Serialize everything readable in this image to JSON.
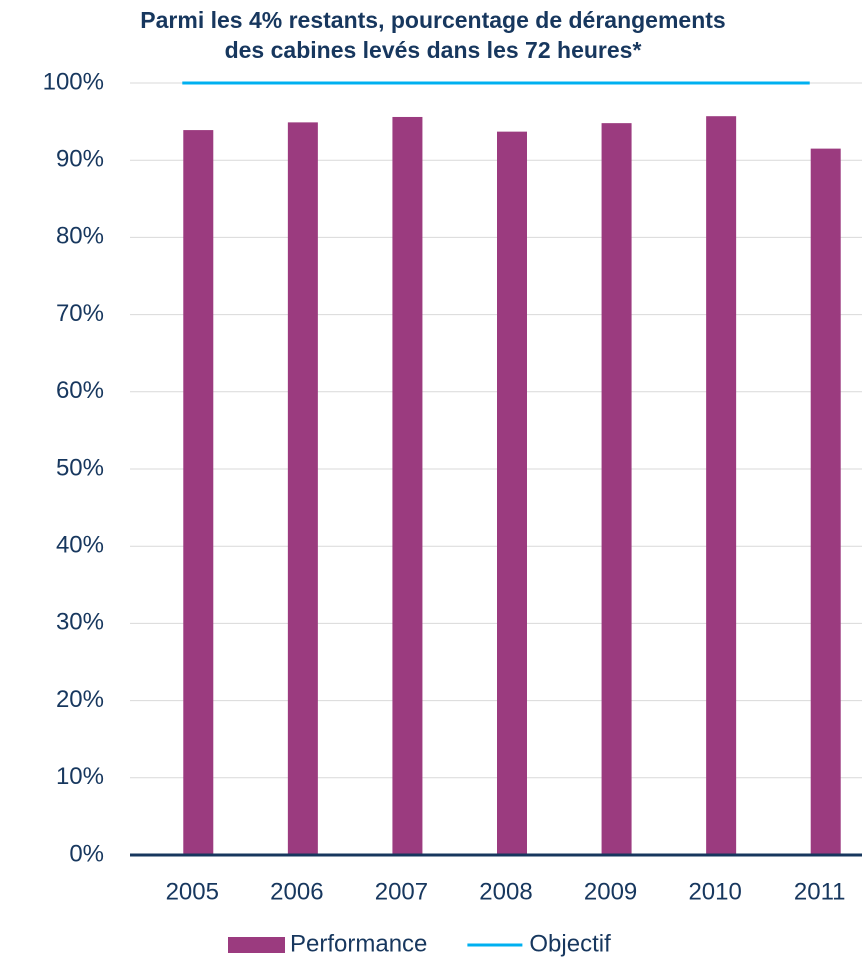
{
  "chart_data": {
    "type": "bar",
    "title": [
      "Parmi les 4% restants, pourcentage de dérangements",
      "des cabines levés dans les 72 heures*"
    ],
    "categories": [
      "2005",
      "2006",
      "2007",
      "2008",
      "2009",
      "2010",
      "2011"
    ],
    "series": [
      {
        "name": "Performance",
        "type": "bar",
        "color": "#9b3b7f",
        "values": [
          93.9,
          94.9,
          95.6,
          93.7,
          94.8,
          95.7,
          91.5
        ]
      },
      {
        "name": "Objectif",
        "type": "line",
        "color": "#00b0f0",
        "values": [
          100,
          100,
          100,
          100,
          100,
          100,
          100
        ]
      }
    ],
    "ylim": [
      0,
      100
    ],
    "yticks": [
      {
        "value": 0,
        "label": "0%"
      },
      {
        "value": 10,
        "label": "10%"
      },
      {
        "value": 20,
        "label": "20%"
      },
      {
        "value": 30,
        "label": "30%"
      },
      {
        "value": 40,
        "label": "40%"
      },
      {
        "value": 50,
        "label": "50%"
      },
      {
        "value": 60,
        "label": "60%"
      },
      {
        "value": 70,
        "label": "70%"
      },
      {
        "value": 80,
        "label": "80%"
      },
      {
        "value": 90,
        "label": "90%"
      },
      {
        "value": 100,
        "label": "100%"
      }
    ],
    "grid": true,
    "legend": "bottom"
  }
}
